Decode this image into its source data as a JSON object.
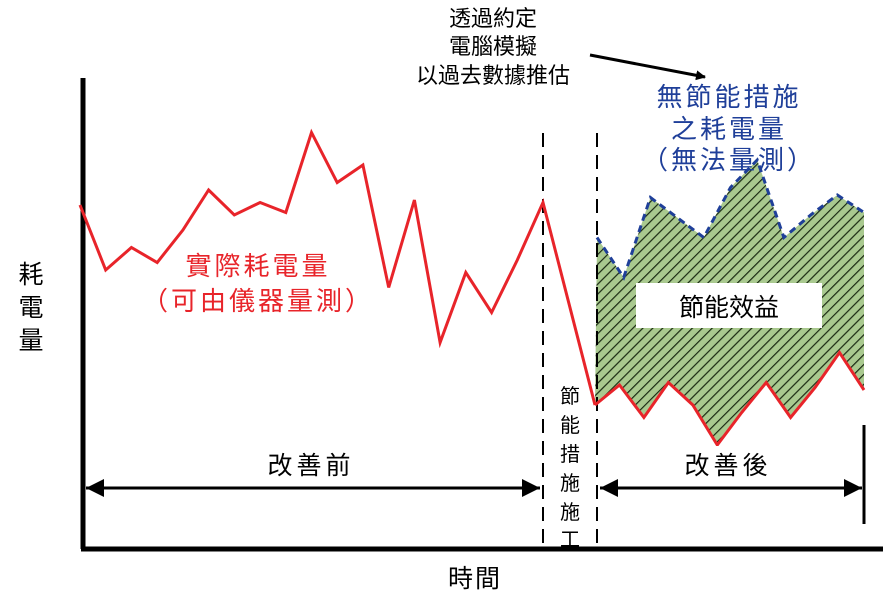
{
  "labels": {
    "y_axis": [
      "耗",
      "電",
      "量"
    ],
    "x_axis": "時間",
    "annotation": [
      "透過約定",
      "電腦模擬",
      "以過去數據推估"
    ],
    "baseline_label": [
      "無節能措施",
      "之耗電量",
      "（無法量測）"
    ],
    "actual_label": [
      "實際耗電量",
      "（可由儀器量測）"
    ],
    "savings_label": "節能效益",
    "before": "改善前",
    "after": "改善後",
    "implementation": [
      "節",
      "能",
      "措",
      "施",
      "施",
      "工"
    ]
  },
  "colors": {
    "actual_line": "#e8242a",
    "baseline_line": "#1f3f99",
    "hatch_fill": "#a9c98f",
    "hatch_line": "#1a2a12",
    "axis": "#000000"
  },
  "series": {
    "actual_before": [
      6,
      3.4,
      4.3,
      3.7,
      5,
      6.6,
      5.6,
      6.1,
      5.7,
      8.9,
      6.9,
      7.6,
      2.7,
      6.2,
      0.5,
      3.3,
      1.7,
      3.8,
      6.1
    ],
    "actual_after": [
      -2,
      -1.2,
      -2.5,
      -1.1,
      -2,
      -3.6,
      -2.3,
      -1.1,
      -2.5,
      -1.3,
      0.1,
      -1.4
    ],
    "baseline_after": [
      4.7,
      3.1,
      6.3,
      5.5,
      4.7,
      6.7,
      7.8,
      4.7,
      5.6,
      6.4,
      5.7
    ]
  }
}
